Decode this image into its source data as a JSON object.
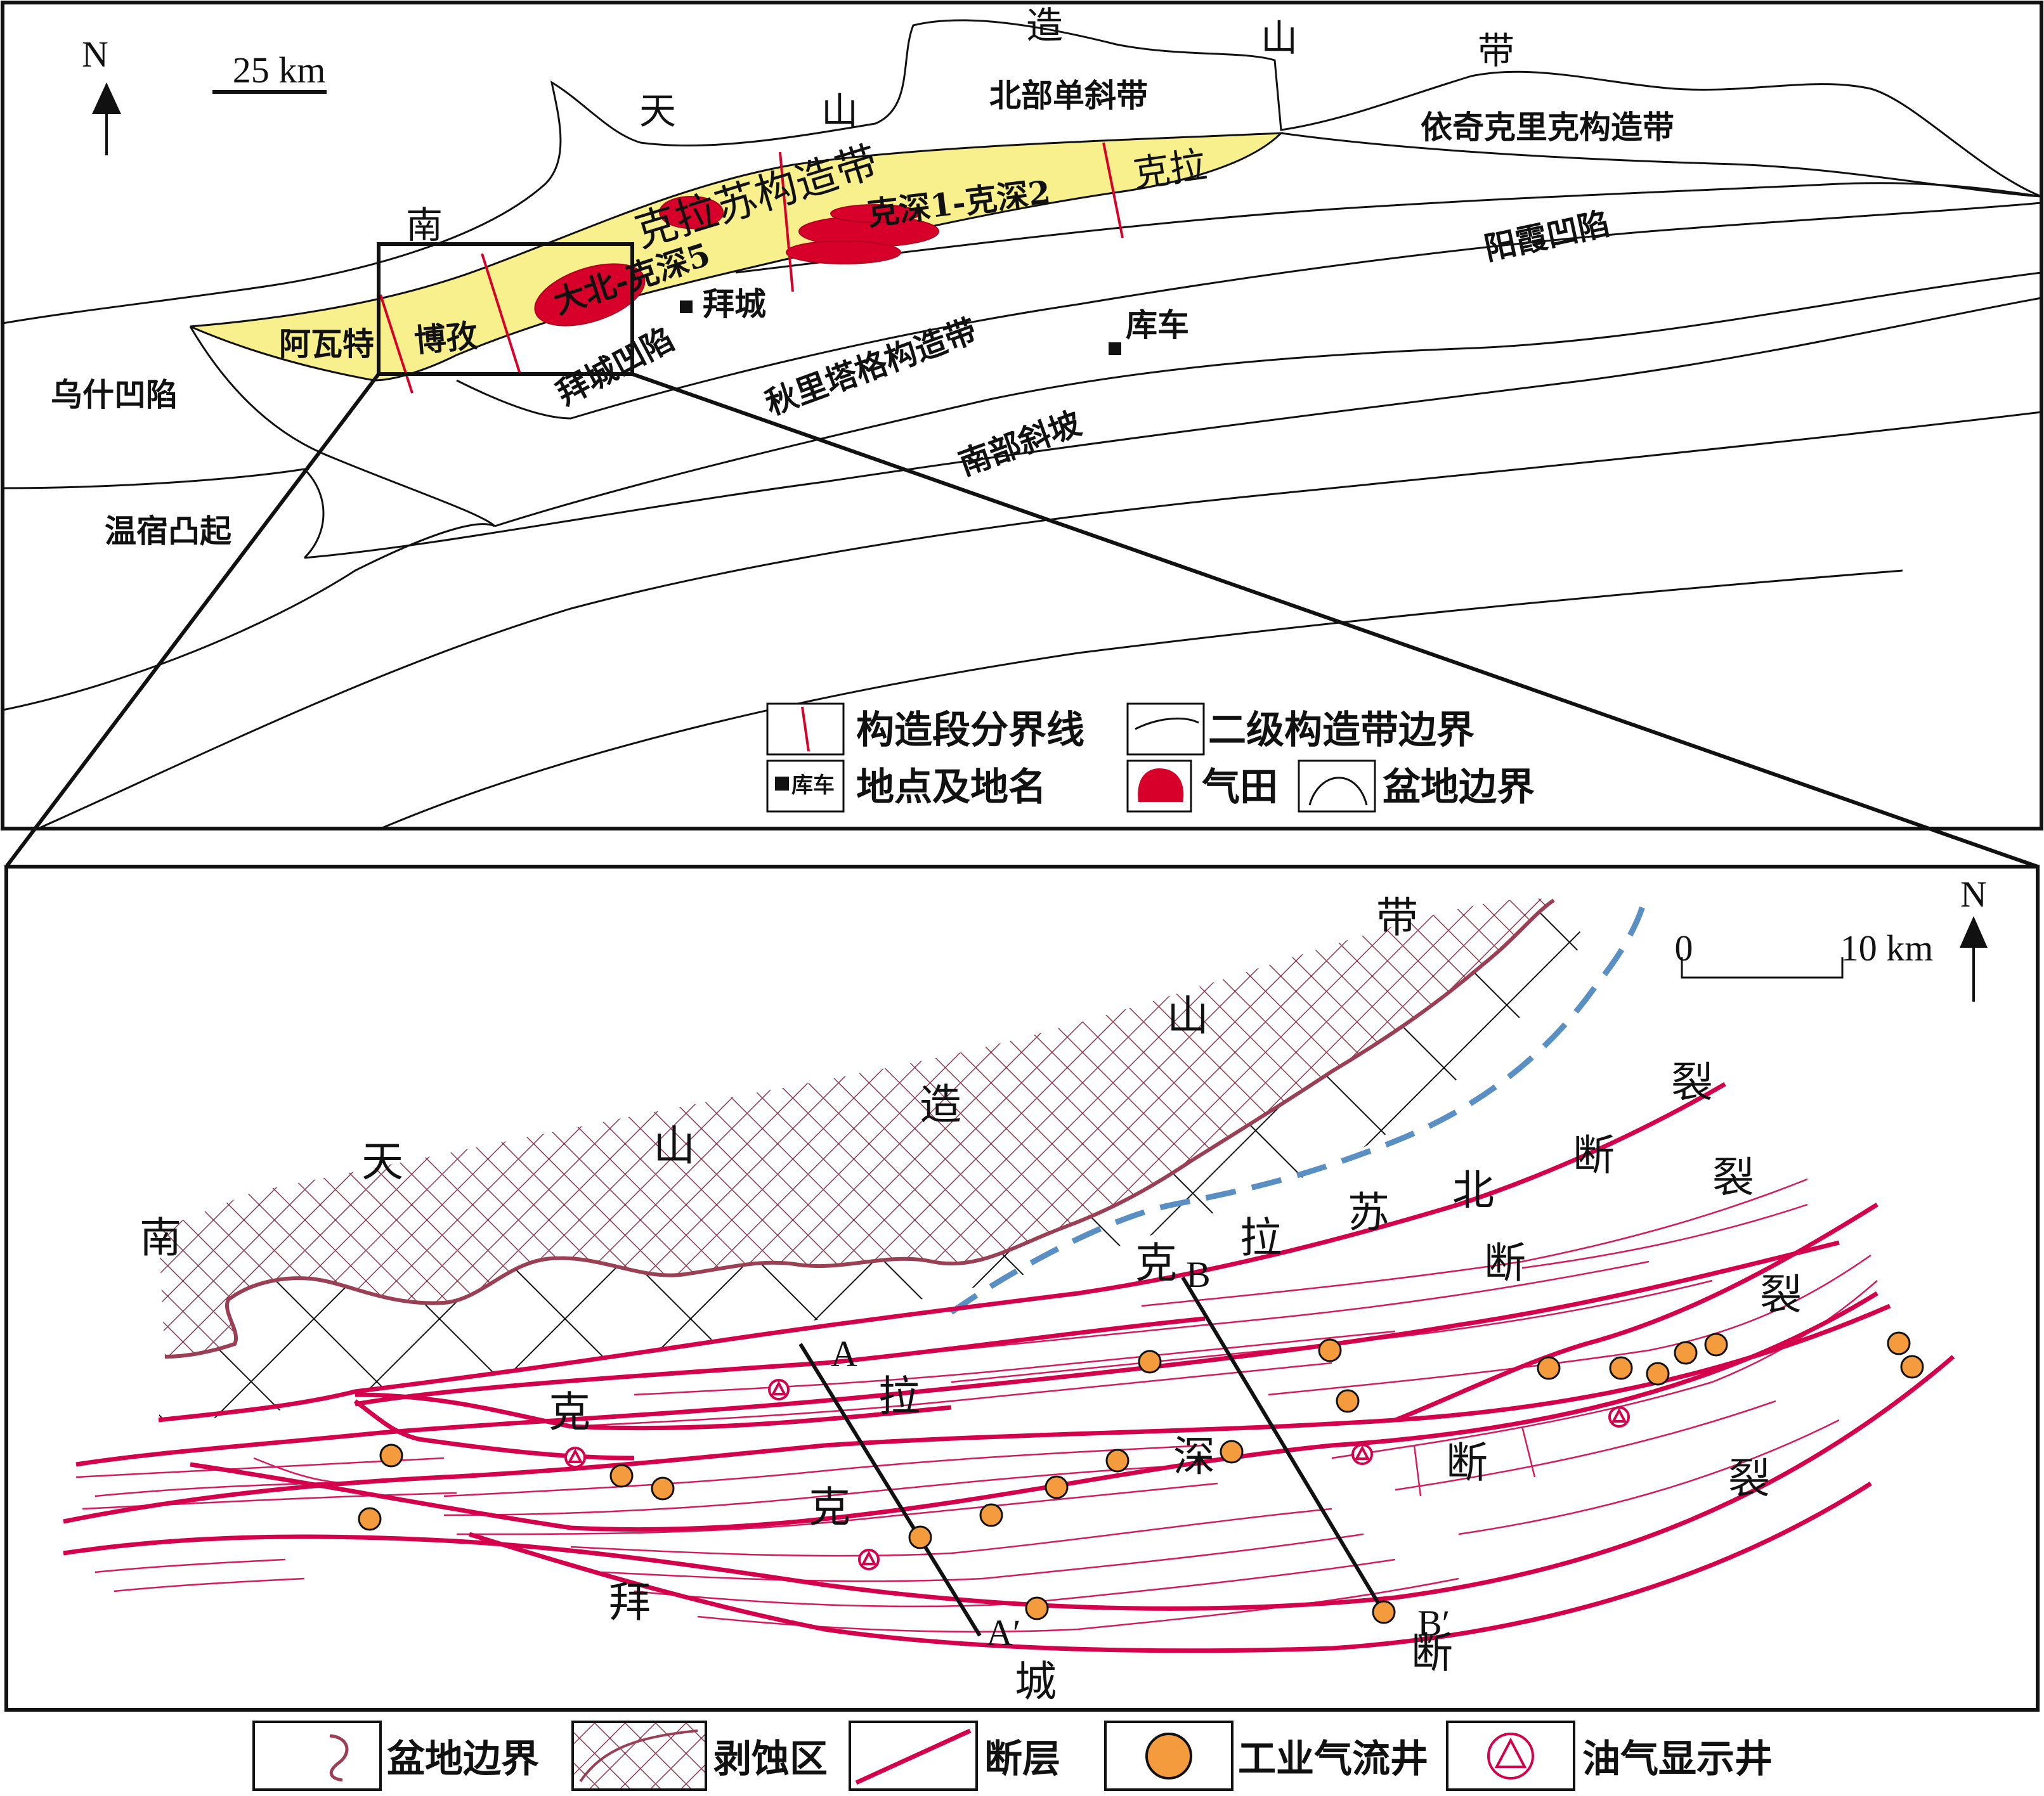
{
  "overview_map": {
    "north": "N",
    "scale": "25 km",
    "labels": {
      "zao": "造",
      "shan_top": "山",
      "dai": "带",
      "tian": "天",
      "shan": "山",
      "nan": "南",
      "north_monocline": "北部单斜带",
      "yiqikelike": "依奇克里克构造带",
      "kelasu_belt": "克拉苏构造带",
      "kela": "克拉",
      "keshen12": "克深1-克深2",
      "dabei_keshen5": "大北-克深5",
      "yangxia": "阳霞凹陷",
      "baicheng": "拜城",
      "kuche": "库车",
      "awate": "阿瓦特",
      "bozi": "博孜",
      "baicheng_sag": "拜城凹陷",
      "qiulitage": "秋里塔格构造带",
      "wushi": "乌什凹陷",
      "south_slope": "南部斜坡",
      "wensu": "温宿凸起"
    },
    "legend": {
      "segment_boundary": "构造段分界线",
      "secondary_boundary": "二级构造带边界",
      "location_symbol_text": "库车",
      "location": "地点及地名",
      "gas_field": "气田",
      "basin_boundary": "盆地边界"
    },
    "colors": {
      "belt_fill": "#f7f08c",
      "gas_field": "#d7002a",
      "segment_line": "#d7002a"
    }
  },
  "detail_map": {
    "north": "N",
    "scale_zero": "0",
    "scale_ten": "10 km",
    "labels": {
      "nan": "南",
      "tian": "天",
      "shan": "山",
      "zao": "造",
      "shan2": "山",
      "dai": "带",
      "ke_a": "克",
      "la_a": "拉",
      "ke_b": "克",
      "la_b": "拉",
      "su": "苏",
      "bei": "北",
      "duan1": "断",
      "lie1": "裂",
      "duan2": "断",
      "lie2": "裂",
      "ke_c": "克",
      "shen": "深",
      "duan3": "断",
      "lie3": "裂",
      "lie4": "裂",
      "bai": "拜",
      "cheng": "城",
      "duan4": "断",
      "sec_A": "A",
      "sec_A2": "A′",
      "sec_B": "B",
      "sec_B2": "B′"
    },
    "legend": {
      "basin_boundary": "盆地边界",
      "erosion": "剥蚀区",
      "fault": "断层",
      "gas_well": "工业气流井",
      "show_well": "油气显示井"
    },
    "colors": {
      "fault": "#d4004b",
      "erosion_edge": "#9b3f55",
      "well_fill": "#f39b3d",
      "dashed": "#5a8fc4"
    }
  }
}
